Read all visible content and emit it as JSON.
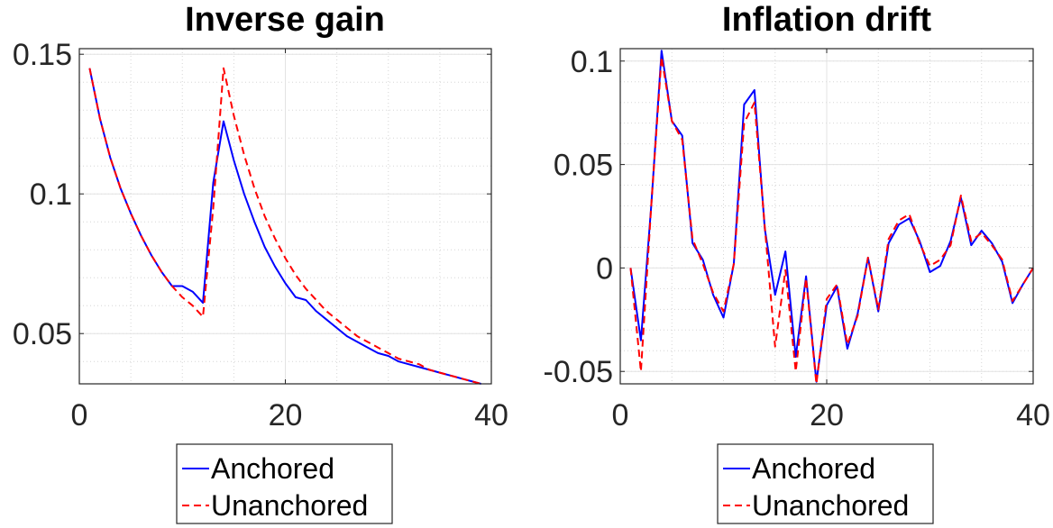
{
  "chart_data": [
    {
      "type": "line",
      "title": "Inverse gain",
      "xlabel": "",
      "ylabel": "",
      "xlim": [
        0,
        40
      ],
      "ylim": [
        0.032,
        0.152
      ],
      "xticks": [
        0,
        20,
        40
      ],
      "yticks": [
        0.05,
        0.1,
        0.15
      ],
      "ytick_labels": [
        "0.05",
        "0.1",
        "0.15"
      ],
      "xtick_labels": [
        "0",
        "20",
        "40"
      ],
      "grid": true,
      "legend_position": "below",
      "x": [
        1,
        2,
        3,
        4,
        5,
        6,
        7,
        8,
        9,
        10,
        11,
        12,
        13,
        14,
        15,
        16,
        17,
        18,
        19,
        20,
        21,
        22,
        23,
        24,
        25,
        26,
        27,
        28,
        29,
        30,
        31,
        32,
        33,
        34,
        35,
        36,
        37,
        38,
        39
      ],
      "series": [
        {
          "name": "Anchored",
          "color": "#0000ff",
          "style": "solid",
          "values": [
            0.145,
            0.127,
            0.113,
            0.102,
            0.093,
            0.085,
            0.078,
            0.072,
            0.067,
            0.067,
            0.065,
            0.061,
            0.104,
            0.126,
            0.112,
            0.1,
            0.09,
            0.081,
            0.074,
            0.068,
            0.063,
            0.062,
            0.058,
            0.055,
            0.052,
            0.049,
            0.047,
            0.045,
            0.043,
            0.042,
            0.04,
            0.039,
            0.038,
            0.037,
            0.036,
            0.035,
            0.034,
            0.033,
            0.032
          ]
        },
        {
          "name": "Unanchored",
          "color": "#ff0000",
          "style": "dashed",
          "values": [
            0.145,
            0.127,
            0.113,
            0.102,
            0.093,
            0.085,
            0.078,
            0.072,
            0.067,
            0.063,
            0.06,
            0.056,
            0.095,
            0.145,
            0.128,
            0.114,
            0.102,
            0.092,
            0.084,
            0.077,
            0.071,
            0.066,
            0.062,
            0.058,
            0.055,
            0.052,
            0.049,
            0.047,
            0.045,
            0.043,
            0.041,
            0.04,
            0.039,
            0.037,
            0.036,
            0.035,
            0.034,
            0.033,
            0.032
          ]
        }
      ]
    },
    {
      "type": "line",
      "title": "Inflation drift",
      "xlabel": "",
      "ylabel": "",
      "xlim": [
        0,
        40
      ],
      "ylim": [
        -0.056,
        0.106
      ],
      "xticks": [
        0,
        20,
        40
      ],
      "yticks": [
        -0.05,
        0,
        0.05,
        0.1
      ],
      "ytick_labels": [
        "-0.05",
        "0",
        "0.05",
        "0.1"
      ],
      "xtick_labels": [
        "0",
        "20",
        "40"
      ],
      "grid": true,
      "legend_position": "below",
      "x": [
        1,
        2,
        3,
        4,
        5,
        6,
        7,
        8,
        9,
        10,
        11,
        12,
        13,
        14,
        15,
        16,
        17,
        18,
        19,
        20,
        21,
        22,
        23,
        24,
        25,
        26,
        27,
        28,
        29,
        30,
        31,
        32,
        33,
        34,
        35,
        36,
        37,
        38,
        39,
        40
      ],
      "series": [
        {
          "name": "Anchored",
          "color": "#0000ff",
          "style": "solid",
          "values": [
            0.0,
            -0.035,
            0.03,
            0.105,
            0.071,
            0.064,
            0.012,
            0.004,
            -0.013,
            -0.024,
            0.002,
            0.079,
            0.086,
            0.019,
            -0.013,
            0.008,
            -0.043,
            -0.004,
            -0.055,
            -0.018,
            -0.009,
            -0.039,
            -0.022,
            0.005,
            -0.021,
            0.012,
            0.021,
            0.024,
            0.013,
            -0.002,
            0.001,
            0.013,
            0.034,
            0.011,
            0.018,
            0.012,
            0.003,
            -0.017,
            -0.008,
            0.0
          ]
        },
        {
          "name": "Unanchored",
          "color": "#ff0000",
          "style": "dashed",
          "values": [
            0.0,
            -0.05,
            0.03,
            0.102,
            0.071,
            0.062,
            0.014,
            0.002,
            -0.012,
            -0.021,
            0.002,
            0.07,
            0.08,
            0.02,
            -0.038,
            -0.001,
            -0.05,
            -0.005,
            -0.056,
            -0.015,
            -0.008,
            -0.037,
            -0.023,
            0.005,
            -0.02,
            0.014,
            0.023,
            0.026,
            0.012,
            0.001,
            0.004,
            0.011,
            0.035,
            0.013,
            0.017,
            0.011,
            0.004,
            -0.016,
            -0.008,
            0.0
          ]
        }
      ]
    }
  ]
}
